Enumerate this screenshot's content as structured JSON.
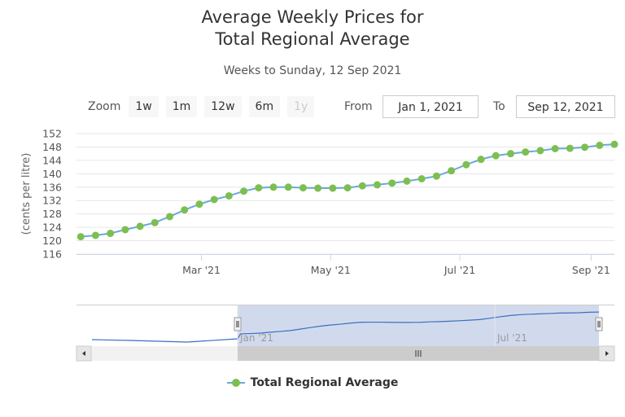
{
  "title_line1": "Average Weekly Prices for",
  "title_line2": "Total Regional Average",
  "subtitle": "Weeks to Sunday, 12 Sep 2021",
  "range_selector": {
    "zoom_label": "Zoom",
    "buttons": [
      "1w",
      "1m",
      "12w",
      "6m",
      "1y"
    ],
    "from_label": "From",
    "from_value": "Jan 1, 2021",
    "to_label": "To",
    "to_value": "Sep 12, 2021"
  },
  "navigator": {
    "labels": [
      "Jan '21",
      "Jul '21"
    ]
  },
  "legend": {
    "label": "Total Regional Average"
  },
  "colors": {
    "line": "#6aa9dd",
    "marker": "#7cbf50",
    "grid": "#e6e6e6",
    "nav_fill": "#ccd6eb"
  },
  "chart_data": {
    "type": "line",
    "title": "Average Weekly Prices for Total Regional Average",
    "subtitle": "Weeks to Sunday, 12 Sep 2021",
    "xlabel": "",
    "ylabel": "(cents per litre)",
    "ylim": [
      116,
      152
    ],
    "yticks": [
      116,
      120,
      124,
      128,
      132,
      136,
      140,
      144,
      148,
      152
    ],
    "xticks": [
      {
        "label": "Mar '21",
        "date": "2021-03-01"
      },
      {
        "label": "May '21",
        "date": "2021-05-01"
      },
      {
        "label": "Jul '21",
        "date": "2021-07-01"
      },
      {
        "label": "Sep '21",
        "date": "2021-09-01"
      }
    ],
    "xlim": [
      "2021-01-01",
      "2021-09-12"
    ],
    "grid": true,
    "legend_position": "bottom",
    "series": [
      {
        "name": "Total Regional Average",
        "x": [
          "2021-01-03",
          "2021-01-10",
          "2021-01-17",
          "2021-01-24",
          "2021-01-31",
          "2021-02-07",
          "2021-02-14",
          "2021-02-21",
          "2021-02-28",
          "2021-03-07",
          "2021-03-14",
          "2021-03-21",
          "2021-03-28",
          "2021-04-04",
          "2021-04-11",
          "2021-04-18",
          "2021-04-25",
          "2021-05-02",
          "2021-05-09",
          "2021-05-16",
          "2021-05-23",
          "2021-05-30",
          "2021-06-06",
          "2021-06-13",
          "2021-06-20",
          "2021-06-27",
          "2021-07-04",
          "2021-07-11",
          "2021-07-18",
          "2021-07-25",
          "2021-08-01",
          "2021-08-08",
          "2021-08-15",
          "2021-08-22",
          "2021-08-29",
          "2021-09-05",
          "2021-09-12"
        ],
        "y": [
          121.2,
          121.6,
          122.2,
          123.3,
          124.3,
          125.4,
          127.2,
          129.2,
          130.9,
          132.3,
          133.4,
          134.8,
          135.8,
          136.0,
          136.0,
          135.8,
          135.7,
          135.7,
          135.8,
          136.4,
          136.7,
          137.2,
          137.8,
          138.5,
          139.3,
          140.9,
          142.7,
          144.3,
          145.4,
          146.0,
          146.5,
          146.9,
          147.5,
          147.6,
          147.9,
          148.5,
          148.8
        ]
      }
    ]
  }
}
